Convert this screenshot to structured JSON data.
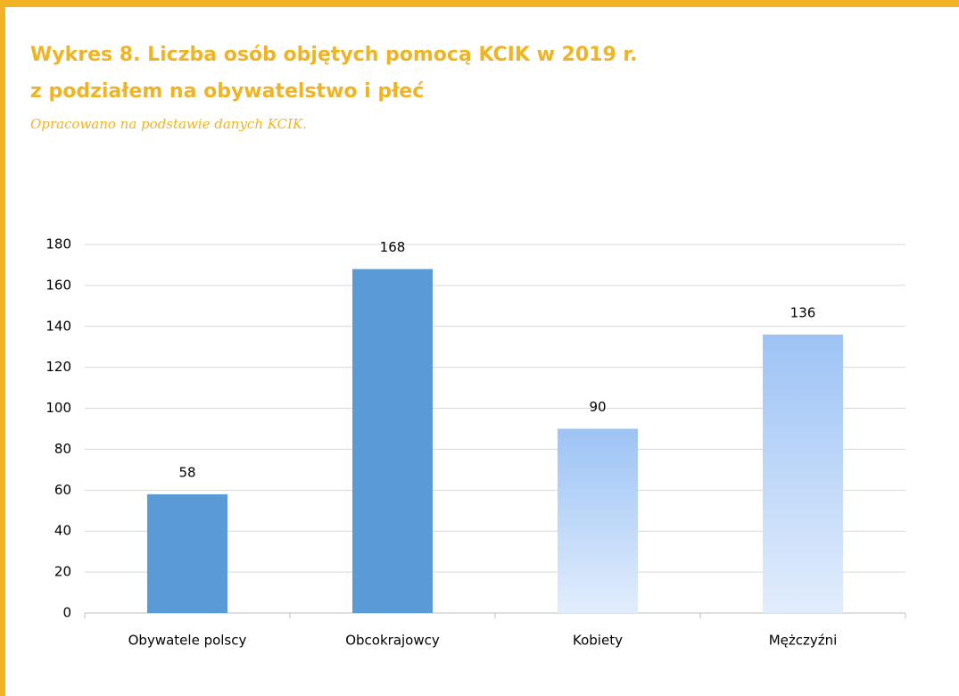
{
  "chart_data": {
    "type": "bar",
    "title": [
      "Wykres 8. Liczba osób objętych pomocą KCIK w 2019 r.",
      "z podziałem na obywatelstwo i płeć"
    ],
    "subtitle": "Opracowano na podstawie danych KCIK.",
    "categories": [
      "Obywatele polscy",
      "Obcokrajowcy",
      "Kobiety",
      "Mężczyźni"
    ],
    "values": [
      58,
      168,
      90,
      136
    ],
    "colors": [
      "#5b9bd5",
      "#5b9bd5",
      "#9dc3f5",
      "#9dc3f5"
    ],
    "gradient": [
      false,
      false,
      true,
      true
    ],
    "ylim": [
      0,
      180
    ],
    "yticks": [
      0,
      20,
      40,
      60,
      80,
      100,
      120,
      140,
      160,
      180
    ],
    "grid": true
  }
}
